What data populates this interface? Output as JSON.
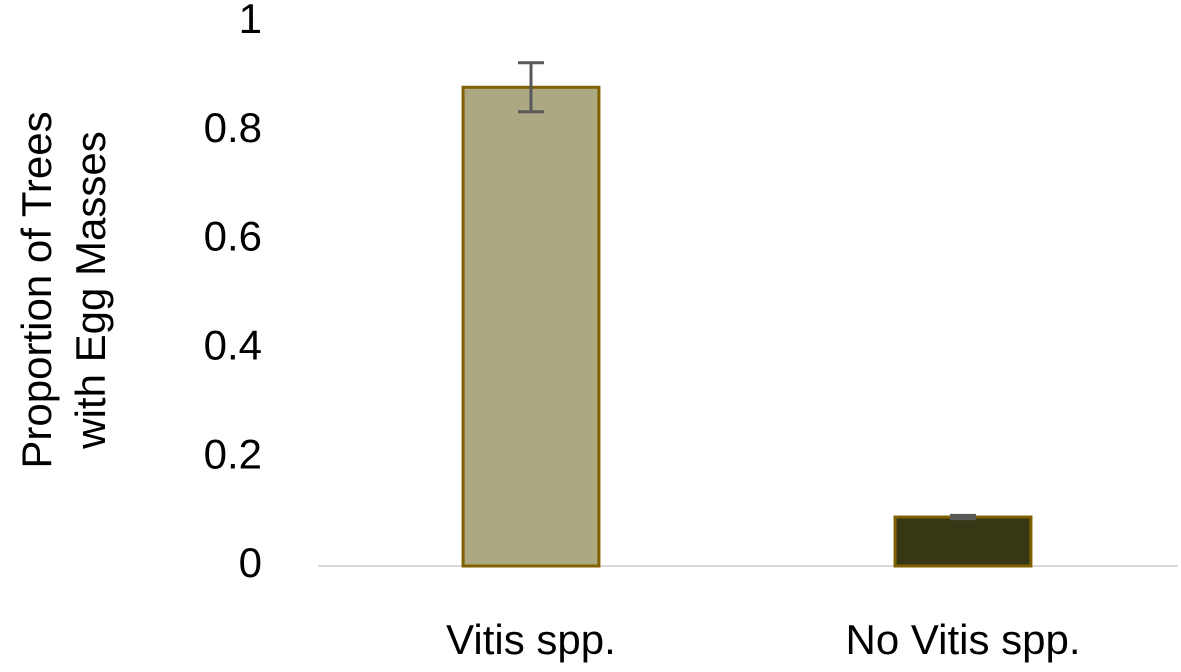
{
  "chart_data": {
    "type": "bar",
    "ylabel": [
      "Proportion of Trees",
      "with Egg Masses"
    ],
    "categories": [
      "Vitis spp.",
      "No Vitis spp."
    ],
    "values": [
      0.88,
      0.09
    ],
    "errors": [
      0.045,
      0.003
    ],
    "colors": [
      "#aba882",
      "#363815"
    ],
    "edge_color": "#806000",
    "error_color": "#595959",
    "ylim": [
      0,
      1
    ],
    "yticks": [
      0,
      0.2,
      0.4,
      0.6,
      0.8,
      1
    ],
    "grid": false
  }
}
